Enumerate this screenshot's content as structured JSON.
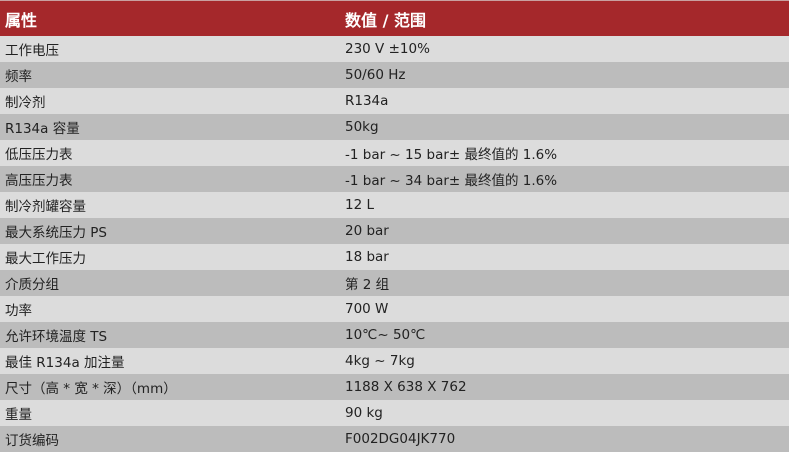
{
  "header": {
    "property": "属性",
    "value": "数值 / 范围"
  },
  "rows": [
    {
      "property": "工作电压",
      "value": "230 V ±10%"
    },
    {
      "property": "频率",
      "value": "50/60 Hz"
    },
    {
      "property": "制冷剂",
      "value": "R134a"
    },
    {
      "property": "R134a 容量",
      "value": "50kg"
    },
    {
      "property": "低压压力表",
      "value": "-1 bar ~ 15 bar± 最终值的 1.6%"
    },
    {
      "property": "高压压力表",
      "value": "-1 bar ~ 34 bar± 最终值的 1.6%"
    },
    {
      "property": "制冷剂罐容量",
      "value": "12 L"
    },
    {
      "property": "最大系统压力 PS",
      "value": "20 bar"
    },
    {
      "property": "最大工作压力",
      "value": "18 bar"
    },
    {
      "property": "介质分组",
      "value": "第 2 组"
    },
    {
      "property": "功率",
      "value": "700 W"
    },
    {
      "property": "允许环境温度 TS",
      "value": "10℃~ 50℃"
    },
    {
      "property": "最佳 R134a 加注量",
      "value": "4kg ~ 7kg"
    },
    {
      "property": "尺寸（高 * 宽 * 深）（mm）",
      "value": "1188 X 638 X 762"
    },
    {
      "property": "重量",
      "value": "90 kg"
    },
    {
      "property": "订货编码",
      "value": "F002DG04JK770"
    }
  ],
  "colors": {
    "header_bg": "#a5282b",
    "row_light": "#dcdcdc",
    "row_dark": "#bcbcbc"
  }
}
